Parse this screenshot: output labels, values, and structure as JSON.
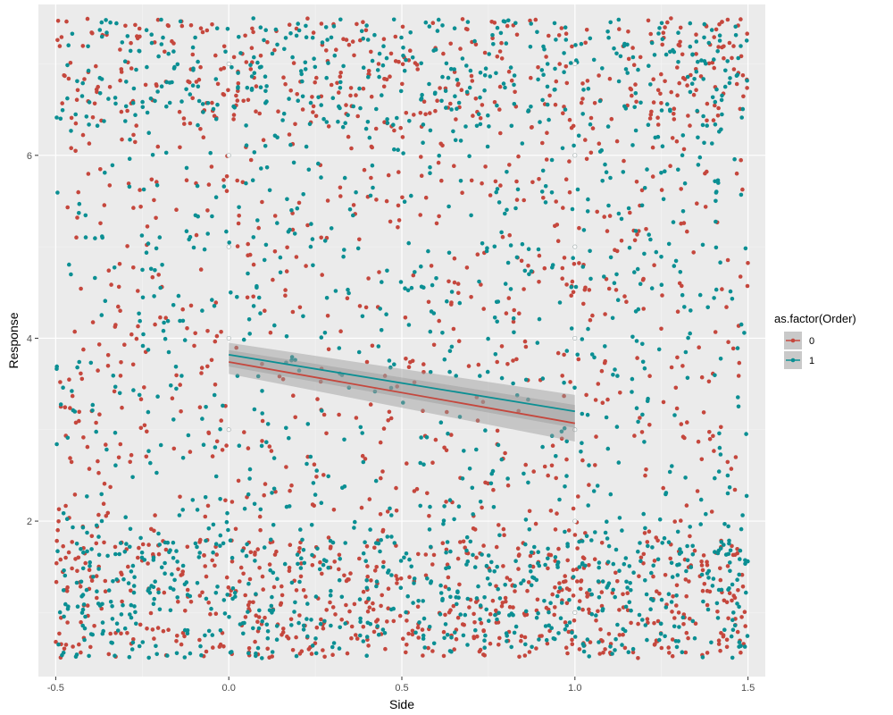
{
  "chart_data": {
    "type": "scatter",
    "title": "",
    "xlabel": "Side",
    "ylabel": "Response",
    "xlim": [
      -0.55,
      1.55
    ],
    "ylim": [
      0.3,
      7.65
    ],
    "x_ticks": [
      -0.5,
      0.0,
      0.5,
      1.0,
      1.5
    ],
    "x_tick_labels": [
      "-0.5",
      "0.0",
      "0.5",
      "1.0",
      "1.5"
    ],
    "y_ticks": [
      2,
      4,
      6
    ],
    "y_tick_labels": [
      "2",
      "4",
      "6"
    ],
    "grid": true,
    "legend": {
      "title": "as.factor(Order)",
      "position": "right"
    },
    "series": [
      {
        "name": "0",
        "color": "#c5473d",
        "points_approx": 1600,
        "x_range": [
          -0.5,
          1.5
        ],
        "y_range": [
          0.5,
          7.5
        ],
        "fit": {
          "x": [
            0,
            1
          ],
          "y": [
            3.74,
            3.07
          ],
          "ci_halfwidth": [
            0.13,
            0.2
          ]
        }
      },
      {
        "name": "1",
        "color": "#0b8f93",
        "points_approx": 1600,
        "x_range": [
          -0.5,
          1.5
        ],
        "y_range": [
          0.5,
          7.5
        ],
        "fit": {
          "x": [
            0,
            1
          ],
          "y": [
            3.82,
            3.2
          ],
          "ci_halfwidth": [
            0.13,
            0.18
          ]
        }
      }
    ],
    "open_points": [
      {
        "x": 0,
        "y": 7
      },
      {
        "x": 0,
        "y": 6
      },
      {
        "x": 0,
        "y": 5
      },
      {
        "x": 0,
        "y": 4
      },
      {
        "x": 0,
        "y": 3
      },
      {
        "x": 1,
        "y": 7
      },
      {
        "x": 1,
        "y": 6
      },
      {
        "x": 1,
        "y": 5
      },
      {
        "x": 1,
        "y": 4
      },
      {
        "x": 1,
        "y": 3
      },
      {
        "x": 1,
        "y": 2
      },
      {
        "x": 1,
        "y": 1
      }
    ]
  }
}
